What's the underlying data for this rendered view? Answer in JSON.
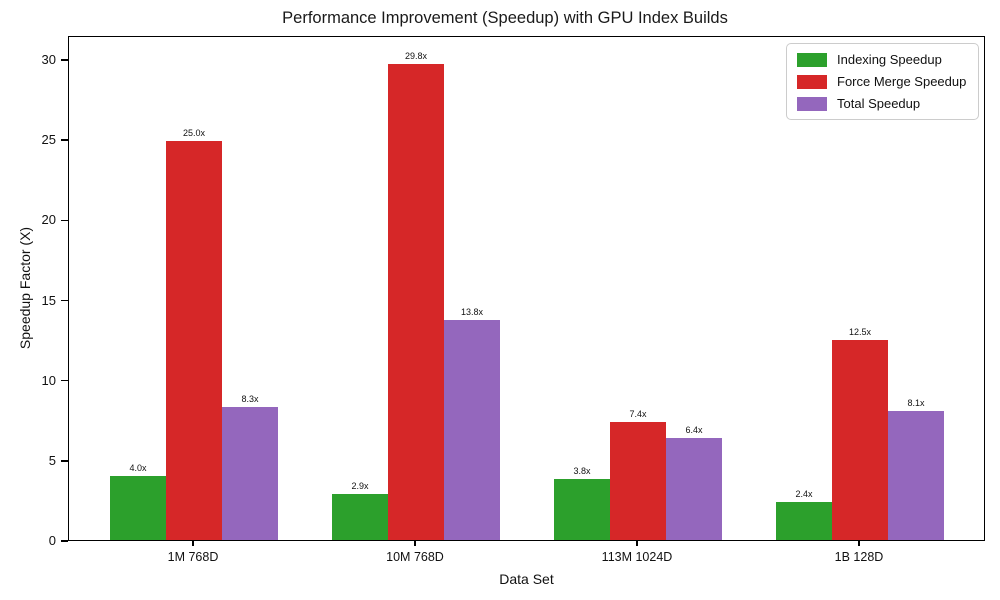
{
  "chart_data": {
    "type": "bar",
    "title": "Performance Improvement (Speedup) with GPU Index Builds",
    "xlabel": "Data Set",
    "ylabel": "Speedup Factor (X)",
    "categories": [
      "1M 768D",
      "10M 768D",
      "113M 1024D",
      "1B 128D"
    ],
    "series": [
      {
        "name": "Indexing Speedup",
        "color": "#2ca02c",
        "values": [
          4.0,
          2.9,
          3.8,
          2.4
        ],
        "labels": [
          "4.0x",
          "2.9x",
          "3.8x",
          "2.4x"
        ]
      },
      {
        "name": "Force Merge Speedup",
        "color": "#d62728",
        "values": [
          25.0,
          29.8,
          7.4,
          12.5
        ],
        "labels": [
          "25.0x",
          "29.8x",
          "7.4x",
          "12.5x"
        ]
      },
      {
        "name": "Total Speedup",
        "color": "#9467bd",
        "values": [
          8.3,
          13.8,
          6.4,
          8.1
        ],
        "labels": [
          "8.3x",
          "13.8x",
          "6.4x",
          "8.1x"
        ]
      }
    ],
    "yticks": [
      0,
      5,
      10,
      15,
      20,
      25,
      30
    ],
    "ylim": [
      0,
      31.5
    ],
    "grid": false,
    "legend_position": "upper right"
  }
}
